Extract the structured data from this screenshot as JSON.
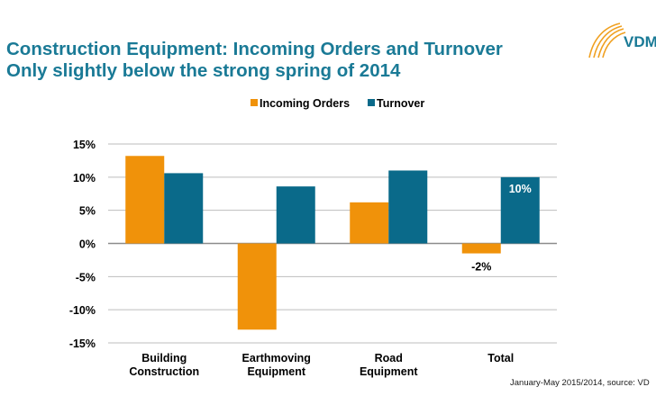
{
  "header": {
    "title_line1": "Construction Equipment: Incoming Orders and Turnover",
    "title_line2": "Only slightly below the strong spring of 2014"
  },
  "logo": {
    "text": "VDM"
  },
  "footer": {
    "source": "January-May 2015/2014, source: VD"
  },
  "colors": {
    "orders": "#f0920a",
    "turnover": "#0a6a8a",
    "title": "#1a7a96"
  },
  "chart_data": {
    "type": "bar",
    "categories": [
      [
        "Building",
        "Construction"
      ],
      [
        "Earthmoving",
        "Equipment"
      ],
      [
        "Road",
        "Equipment"
      ],
      [
        "Total"
      ]
    ],
    "series": [
      {
        "name": "Incoming Orders",
        "values": [
          13.2,
          -13.0,
          6.2,
          -1.5
        ]
      },
      {
        "name": "Turnover",
        "values": [
          10.6,
          8.6,
          11.0,
          10.0
        ]
      }
    ],
    "data_labels": [
      {
        "series": 0,
        "index": 3,
        "text": "-2%",
        "placement": "below"
      },
      {
        "series": 1,
        "index": 3,
        "text": "10%",
        "placement": "inside-top"
      }
    ],
    "ylim": [
      -15,
      15
    ],
    "yticks": [
      15,
      10,
      5,
      0,
      -5,
      -10,
      -15
    ],
    "ytick_labels": [
      "15%",
      "10%",
      "5%",
      "0%",
      "-5%",
      "-10%",
      "-15%"
    ],
    "grid": true,
    "legend_position": "top-center"
  }
}
